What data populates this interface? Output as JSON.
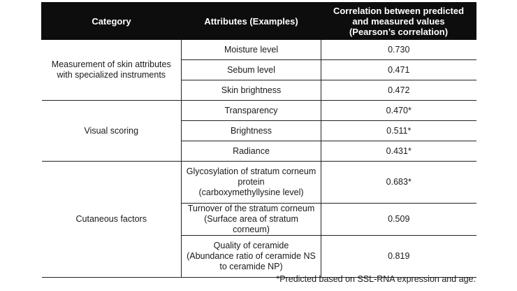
{
  "header": {
    "category": "Category",
    "attributes": "Attributes (Examples)",
    "correlation": "Correlation between predicted\nand measured values\n(Pearson’s correlation)"
  },
  "groups": [
    {
      "category": "Measurement of skin attributes\nwith specialized instruments",
      "rows": [
        {
          "attribute": "Moisture level",
          "value": "0.730"
        },
        {
          "attribute": "Sebum level",
          "value": "0.471"
        },
        {
          "attribute": "Skin brightness",
          "value": "0.472"
        }
      ]
    },
    {
      "category": "Visual scoring",
      "rows": [
        {
          "attribute": "Transparency",
          "value": "0.470*"
        },
        {
          "attribute": "Brightness",
          "value": "0.511*"
        },
        {
          "attribute": "Radiance",
          "value": "0.431*"
        }
      ]
    },
    {
      "category": "Cutaneous factors",
      "rows": [
        {
          "attribute": "Glycosylation of stratum corneum\nprotein\n(carboxymethyllysine level)",
          "value": "0.683*"
        },
        {
          "attribute": "Turnover of the stratum corneum\n(Surface area of stratum corneum)",
          "value": "0.509"
        },
        {
          "attribute": "Quality of ceramide\n(Abundance ratio of ceramide NS\nto ceramide NP)",
          "value": "0.819"
        }
      ]
    }
  ],
  "footnote": "*Predicted based on SSL-RNA expression and age."
}
